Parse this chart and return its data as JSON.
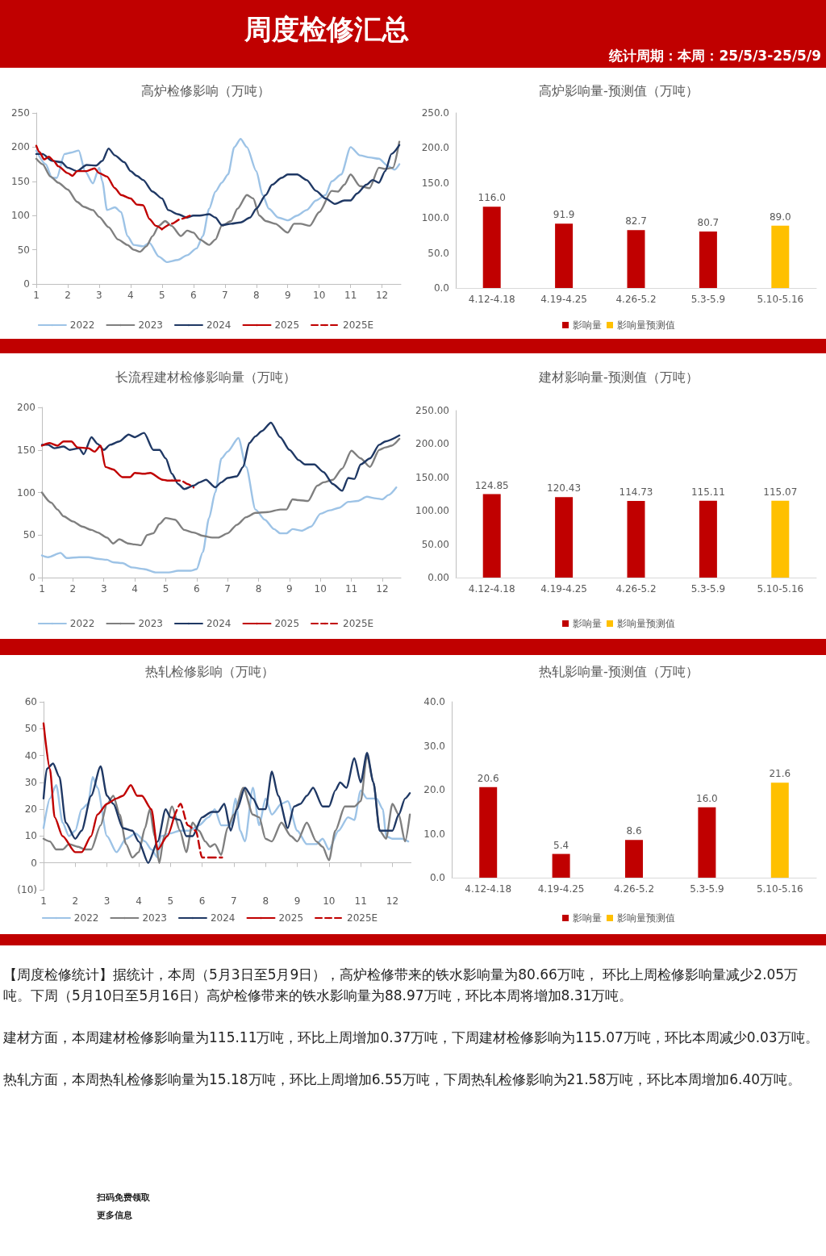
{
  "chart_data": [
    {
      "type": "other",
      "title": "周度检修汇总",
      "subtitle": "统计周期：本周：25/5/3-25/5/9"
    },
    {
      "type": "line",
      "title": "高炉检修影响（万吨）",
      "xlim": [
        1,
        12.6
      ],
      "xticks": [
        1,
        2,
        3,
        4,
        5,
        6,
        7,
        8,
        9,
        10,
        11,
        12
      ],
      "ylim": [
        0,
        250
      ],
      "yticks": [
        0,
        50,
        100,
        150,
        200,
        250
      ],
      "legend": "bottom",
      "series": [
        {
          "name": "2022",
          "color": "#9dc3e6",
          "x": [
            1,
            1.3,
            1.5,
            1.65,
            1.9,
            2.1,
            2.35,
            2.55,
            2.8,
            3.0,
            3.1,
            3.25,
            3.5,
            3.7,
            3.9,
            4.1,
            4.4,
            4.6,
            4.9,
            5.15,
            5.5,
            5.8,
            6.1,
            6.3,
            6.5,
            6.7,
            6.9,
            7.1,
            7.3,
            7.5,
            7.7,
            8.0,
            8.2,
            8.4,
            8.7,
            9.0,
            9.3,
            9.6,
            9.9,
            10.2,
            10.4,
            10.7,
            11.0,
            11.3,
            11.6,
            11.9,
            12.2,
            12.4,
            12.55
          ],
          "values": [
            195,
            175,
            155,
            155,
            190,
            192,
            195,
            165,
            147,
            170,
            150,
            108,
            112,
            105,
            70,
            57,
            55,
            60,
            40,
            32,
            35,
            42,
            52,
            70,
            110,
            135,
            148,
            160,
            200,
            212,
            200,
            165,
            130,
            110,
            97,
            93,
            100,
            108,
            122,
            130,
            150,
            160,
            200,
            188,
            185,
            183,
            172,
            167,
            175
          ]
        },
        {
          "name": "2023",
          "color": "#7f7f7f",
          "x": [
            1,
            1.2,
            1.45,
            1.7,
            2.0,
            2.3,
            2.5,
            2.8,
            3.0,
            3.3,
            3.6,
            3.9,
            4.1,
            4.3,
            4.5,
            4.7,
            4.9,
            5.1,
            5.3,
            5.6,
            5.8,
            6.0,
            6.2,
            6.5,
            6.7,
            6.9,
            7.2,
            7.4,
            7.7,
            7.9,
            8.1,
            8.3,
            8.6,
            9.0,
            9.2,
            9.4,
            9.7,
            10.0,
            10.4,
            10.6,
            10.8,
            11.0,
            11.3,
            11.6,
            11.9,
            12.1,
            12.35,
            12.55
          ],
          "values": [
            183,
            175,
            157,
            148,
            138,
            120,
            113,
            108,
            98,
            83,
            65,
            57,
            50,
            47,
            55,
            70,
            85,
            92,
            85,
            70,
            78,
            75,
            65,
            57,
            65,
            85,
            92,
            110,
            130,
            125,
            100,
            92,
            88,
            75,
            88,
            88,
            85,
            105,
            136,
            135,
            145,
            160,
            143,
            140,
            170,
            168,
            170,
            208
          ]
        },
        {
          "name": "2024",
          "color": "#1f3864",
          "x": [
            1,
            1.2,
            1.5,
            1.8,
            2.0,
            2.3,
            2.6,
            2.9,
            3.1,
            3.3,
            3.5,
            3.8,
            4.0,
            4.2,
            4.4,
            4.7,
            5.0,
            5.2,
            5.5,
            5.8,
            6.0,
            6.2,
            6.5,
            6.7,
            6.9,
            7.2,
            7.5,
            7.8,
            8.0,
            8.3,
            8.5,
            8.8,
            9.0,
            9.3,
            9.6,
            9.9,
            10.2,
            10.5,
            10.8,
            11.0,
            11.2,
            11.5,
            11.7,
            11.9,
            12.1,
            12.3,
            12.55
          ],
          "values": [
            190,
            190,
            180,
            178,
            170,
            165,
            174,
            173,
            180,
            198,
            188,
            178,
            165,
            158,
            152,
            135,
            125,
            108,
            102,
            97,
            100,
            100,
            102,
            97,
            86,
            88,
            90,
            97,
            110,
            130,
            145,
            155,
            160,
            160,
            152,
            136,
            125,
            117,
            122,
            122,
            132,
            145,
            152,
            148,
            165,
            190,
            203
          ]
        },
        {
          "name": "2025",
          "color": "#c00000",
          "x": [
            1,
            1.1,
            1.25,
            1.4,
            1.55,
            1.7,
            2.0,
            2.15,
            2.3,
            2.6,
            2.85,
            3.0,
            3.25,
            3.5,
            3.7,
            4.0,
            4.2,
            4.4,
            4.6,
            4.8,
            5.0
          ],
          "values": [
            202,
            193,
            182,
            186,
            180,
            172,
            162,
            158,
            165,
            165,
            169,
            162,
            157,
            140,
            130,
            125,
            116,
            115,
            95,
            85,
            80
          ]
        },
        {
          "name": "2025E",
          "color": "#c00000",
          "line_style": "dashed",
          "x": [
            5.0,
            5.3,
            5.6,
            5.9
          ],
          "values": [
            80,
            88,
            95,
            100
          ]
        }
      ]
    },
    {
      "type": "bar",
      "title": "高炉影响量-预测值（万吨）",
      "categories": [
        "4.12-4.18",
        "4.19-4.25",
        "4.26-5.2",
        "5.3-5.9",
        "5.10-5.16"
      ],
      "ylim": [
        0,
        250
      ],
      "yticks": [
        {
          "value": 0,
          "label": "0.0"
        },
        {
          "value": 50,
          "label": "50.0"
        },
        {
          "value": 100,
          "label": "100.0"
        },
        {
          "value": 150,
          "label": "150.0"
        },
        {
          "value": 200,
          "label": "200.0"
        },
        {
          "value": 250,
          "label": "250.0"
        }
      ],
      "legend": "bottom",
      "series": [
        {
          "name": "影响量",
          "color": "#c00000",
          "values": [
            116.0,
            91.9,
            82.7,
            80.7,
            null
          ],
          "value_labels": [
            "116.0",
            "91.9",
            "82.7",
            "80.7",
            null
          ]
        },
        {
          "name": "影响量预测值",
          "color": "#ffc000",
          "values": [
            null,
            null,
            null,
            null,
            89.0
          ],
          "value_labels": [
            null,
            null,
            null,
            null,
            "89.0"
          ]
        }
      ]
    },
    {
      "type": "line",
      "title": "长流程建材检修影响量（万吨）",
      "xlim": [
        1,
        12.6
      ],
      "xticks": [
        1,
        2,
        3,
        4,
        5,
        6,
        7,
        8,
        9,
        10,
        11,
        12
      ],
      "ylim": [
        0,
        200
      ],
      "yticks": [
        0,
        50,
        100,
        150,
        200
      ],
      "legend": "bottom",
      "series": [
        {
          "name": "2022",
          "color": "#9dc3e6",
          "x": [
            1,
            1.2,
            1.6,
            1.8,
            2.2,
            2.5,
            2.8,
            3.1,
            3.3,
            3.6,
            3.9,
            4.3,
            4.7,
            5.1,
            5.4,
            5.8,
            6.0,
            6.2,
            6.4,
            6.6,
            6.8,
            7.0,
            7.35,
            7.6,
            7.9,
            8.2,
            8.5,
            8.7,
            8.9,
            9.1,
            9.4,
            9.7,
            10.0,
            10.3,
            10.6,
            10.9,
            11.2,
            11.5,
            11.8,
            12.0,
            12.2,
            12.45
          ],
          "values": [
            26,
            24,
            29,
            23,
            24,
            24,
            22,
            21,
            18,
            17,
            12,
            10,
            6,
            6,
            8,
            8,
            10,
            30,
            70,
            100,
            140,
            148,
            164,
            130,
            80,
            68,
            57,
            52,
            52,
            57,
            55,
            60,
            75,
            79,
            82,
            89,
            90,
            95,
            93,
            92,
            97,
            106
          ]
        },
        {
          "name": "2023",
          "color": "#7f7f7f",
          "x": [
            1,
            1.3,
            1.5,
            1.7,
            2.0,
            2.3,
            2.6,
            2.8,
            3.1,
            3.3,
            3.5,
            3.8,
            4.0,
            4.2,
            4.4,
            4.6,
            4.8,
            5.0,
            5.3,
            5.6,
            5.9,
            6.2,
            6.5,
            6.7,
            7.0,
            7.3,
            7.6,
            7.9,
            8.3,
            8.7,
            8.9,
            9.1,
            9.3,
            9.6,
            9.9,
            10.1,
            10.4,
            10.7,
            11.0,
            11.3,
            11.6,
            11.9,
            12.1,
            12.3,
            12.55
          ],
          "values": [
            100,
            88,
            80,
            72,
            66,
            60,
            56,
            53,
            47,
            40,
            45,
            40,
            39,
            38,
            50,
            52,
            63,
            70,
            68,
            56,
            53,
            49,
            47,
            47,
            52,
            62,
            71,
            76,
            77,
            80,
            80,
            92,
            91,
            90,
            108,
            112,
            115,
            128,
            149,
            140,
            130,
            150,
            153,
            155,
            163
          ]
        },
        {
          "name": "2024",
          "color": "#1f3864",
          "x": [
            1,
            1.2,
            1.4,
            1.7,
            1.9,
            2.2,
            2.35,
            2.6,
            2.8,
            3.0,
            3.2,
            3.5,
            3.8,
            4.0,
            4.3,
            4.6,
            4.8,
            5.0,
            5.2,
            5.4,
            5.6,
            5.9,
            6.1,
            6.3,
            6.6,
            6.8,
            7.0,
            7.3,
            7.5,
            7.7,
            7.9,
            8.1,
            8.4,
            8.7,
            9.0,
            9.3,
            9.5,
            9.8,
            10.1,
            10.4,
            10.7,
            10.9,
            11.1,
            11.3,
            11.6,
            11.9,
            12.1,
            12.55
          ],
          "values": [
            156,
            156,
            152,
            154,
            150,
            152,
            145,
            165,
            157,
            150,
            156,
            160,
            168,
            165,
            170,
            150,
            150,
            140,
            122,
            110,
            104,
            108,
            112,
            115,
            106,
            112,
            117,
            119,
            130,
            158,
            166,
            172,
            182,
            165,
            150,
            138,
            133,
            133,
            124,
            110,
            102,
            117,
            116,
            133,
            140,
            156,
            160,
            167
          ]
        },
        {
          "name": "2025",
          "color": "#c00000",
          "x": [
            1,
            1.25,
            1.5,
            1.7,
            1.95,
            2.15,
            2.5,
            2.7,
            2.9,
            3.05,
            3.3,
            3.6,
            3.85,
            4.0,
            4.3,
            4.5,
            4.9,
            5.05,
            5.2
          ],
          "values": [
            155,
            158,
            155,
            160,
            160,
            153,
            152,
            148,
            155,
            130,
            127,
            118,
            118,
            123,
            122,
            123,
            115,
            114,
            114
          ]
        },
        {
          "name": "2025E",
          "color": "#c00000",
          "line_style": "dashed",
          "x": [
            5.2,
            5.5,
            5.7,
            5.9
          ],
          "values": [
            114,
            114,
            110,
            106
          ]
        }
      ]
    },
    {
      "type": "bar",
      "title": "建材影响量-预测值（万吨）",
      "categories": [
        "4.12-4.18",
        "4.19-4.25",
        "4.26-5.2",
        "5.3-5.9",
        "5.10-5.16"
      ],
      "ylim": [
        0,
        250
      ],
      "yticks": [
        {
          "value": 0,
          "label": "0.00"
        },
        {
          "value": 50,
          "label": "50.00"
        },
        {
          "value": 100,
          "label": "100.00"
        },
        {
          "value": 150,
          "label": "150.00"
        },
        {
          "value": 200,
          "label": "200.00"
        },
        {
          "value": 250,
          "label": "250.00"
        }
      ],
      "legend": "bottom",
      "series": [
        {
          "name": "影响量",
          "color": "#c00000",
          "values": [
            124.85,
            120.43,
            114.73,
            115.11,
            null
          ],
          "value_labels": [
            "124.85",
            "120.43",
            "114.73",
            "115.11",
            null
          ]
        },
        {
          "name": "影响量预测值",
          "color": "#ffc000",
          "values": [
            null,
            null,
            null,
            null,
            115.07
          ],
          "value_labels": [
            null,
            null,
            null,
            null,
            "115.07"
          ]
        }
      ]
    },
    {
      "type": "line",
      "title": "热轧检修影响（万吨）",
      "xlim": [
        1,
        12.7
      ],
      "xticks": [
        1,
        2,
        3,
        4,
        5,
        6,
        7,
        8,
        9,
        10,
        11,
        12
      ],
      "ylim": [
        -10,
        60
      ],
      "yticks": [
        {
          "value": -10,
          "label": "(10)"
        },
        0,
        10,
        20,
        30,
        40,
        50,
        60
      ],
      "legend": "bottom",
      "series": [
        {
          "name": "2022",
          "color": "#9dc3e6",
          "x": [
            1,
            1.2,
            1.4,
            1.6,
            1.8,
            2.0,
            2.2,
            2.4,
            2.55,
            2.7,
            3.0,
            3.3,
            3.6,
            3.9,
            4.2,
            4.4,
            4.6,
            4.7,
            5.0,
            5.3,
            5.6,
            5.9,
            6.2,
            6.4,
            6.6,
            6.9,
            7.05,
            7.2,
            7.35,
            7.6,
            7.8,
            8.0,
            8.2,
            8.5,
            8.7,
            9.0,
            9.3,
            9.6,
            9.8,
            10.0,
            10.3,
            10.6,
            10.8,
            11.0,
            11.2,
            11.5,
            11.7,
            11.8,
            12.0,
            12.3,
            12.5
          ],
          "values": [
            13,
            24,
            29,
            15,
            10,
            12,
            20,
            22,
            32,
            28,
            10,
            4,
            9,
            11,
            8,
            5,
            2,
            10,
            11,
            12,
            12,
            14,
            17,
            20,
            14,
            14,
            24,
            12,
            8,
            28,
            14,
            24,
            18,
            22,
            23,
            12,
            7,
            7,
            9,
            5,
            12,
            17,
            16,
            27,
            24,
            24,
            20,
            10,
            9,
            9,
            8
          ]
        },
        {
          "name": "2023",
          "color": "#7f7f7f",
          "x": [
            1,
            1.2,
            1.4,
            1.6,
            1.8,
            2.1,
            2.3,
            2.5,
            2.8,
            3.0,
            3.2,
            3.4,
            3.6,
            3.8,
            4.0,
            4.2,
            4.35,
            4.5,
            4.65,
            4.8,
            5.05,
            5.3,
            5.5,
            5.7,
            5.9,
            6.1,
            6.25,
            6.4,
            6.6,
            6.8,
            7.0,
            7.3,
            7.6,
            7.8,
            8.0,
            8.2,
            8.5,
            8.8,
            9.0,
            9.3,
            9.6,
            9.8,
            10.0,
            10.2,
            10.5,
            10.8,
            11.0,
            11.2,
            11.4,
            11.6,
            11.8,
            12.0,
            12.2,
            12.4,
            12.55
          ],
          "values": [
            9,
            8,
            5,
            5,
            7,
            6,
            5,
            5,
            14,
            22,
            25,
            18,
            7,
            2,
            4,
            13,
            20,
            10,
            0,
            10,
            21,
            12,
            4,
            15,
            12,
            8,
            6,
            7,
            3,
            13,
            18,
            28,
            18,
            17,
            9,
            8,
            15,
            10,
            8,
            15,
            8,
            6,
            1,
            12,
            21,
            21,
            23,
            40,
            30,
            12,
            9,
            22,
            18,
            8,
            18
          ]
        },
        {
          "name": "2024",
          "color": "#1f3864",
          "x": [
            1,
            1.1,
            1.3,
            1.5,
            1.7,
            2.0,
            2.2,
            2.5,
            2.8,
            3.0,
            3.2,
            3.5,
            3.8,
            4.0,
            4.3,
            4.6,
            4.85,
            5.0,
            5.3,
            5.5,
            5.7,
            6.0,
            6.3,
            6.5,
            6.7,
            6.9,
            7.1,
            7.35,
            7.6,
            7.8,
            8.0,
            8.2,
            8.4,
            8.7,
            8.9,
            9.1,
            9.3,
            9.5,
            9.8,
            10.0,
            10.2,
            10.35,
            10.55,
            10.8,
            11.0,
            11.2,
            11.4,
            11.6,
            11.8,
            12.0,
            12.2,
            12.4,
            12.55
          ],
          "values": [
            24,
            35,
            37,
            32,
            15,
            9,
            12,
            25,
            36,
            25,
            22,
            13,
            12,
            8,
            0,
            8,
            20,
            17,
            16,
            10,
            10,
            17,
            19,
            19,
            22,
            12,
            20,
            28,
            24,
            20,
            20,
            34,
            25,
            13,
            21,
            22,
            25,
            28,
            21,
            21,
            27,
            30,
            28,
            39,
            30,
            41,
            30,
            12,
            12,
            12,
            18,
            24,
            26
          ]
        },
        {
          "name": "2025",
          "color": "#c00000",
          "x": [
            1,
            1.2,
            1.35,
            1.6,
            2.0,
            2.2,
            2.5,
            2.7,
            3.0,
            3.3,
            3.5,
            3.75,
            3.95,
            4.1,
            4.4,
            4.6,
            4.9,
            5.11
          ],
          "values": [
            52,
            35,
            17,
            10,
            4,
            4,
            10,
            18,
            22,
            24,
            25,
            29,
            25,
            25,
            20,
            5,
            10,
            17
          ]
        },
        {
          "name": "2025E",
          "color": "#c00000",
          "line_style": "dashed",
          "x": [
            5.11,
            5.32,
            5.55,
            5.8,
            6.0,
            6.63
          ],
          "values": [
            17,
            22,
            14,
            12,
            2,
            2
          ]
        }
      ]
    },
    {
      "type": "bar",
      "title": "热轧影响量-预测值（万吨）",
      "categories": [
        "4.12-4.18",
        "4.19-4.25",
        "4.26-5.2",
        "5.3-5.9",
        "5.10-5.16"
      ],
      "ylim": [
        0,
        40
      ],
      "yticks": [
        {
          "value": 0,
          "label": "0.0"
        },
        {
          "value": 10,
          "label": "10.0"
        },
        {
          "value": 20,
          "label": "20.0"
        },
        {
          "value": 30,
          "label": "30.0"
        },
        {
          "value": 40,
          "label": "40.0"
        }
      ],
      "legend": "bottom",
      "series": [
        {
          "name": "影响量",
          "color": "#c00000",
          "values": [
            20.6,
            5.4,
            8.6,
            16.0,
            null
          ],
          "value_labels": [
            "20.6",
            "5.4",
            "8.6",
            "16.0",
            null
          ]
        },
        {
          "name": "影响量预测值",
          "color": "#ffc000",
          "values": [
            null,
            null,
            null,
            null,
            21.6
          ],
          "value_labels": [
            null,
            null,
            null,
            null,
            "21.6"
          ]
        }
      ]
    },
    {
      "type": "other",
      "annotations": [
        "【周度检修统计】据统计，本周（5月3日至5月9日），高炉检修带来的铁水影响量为80.66万吨， 环比上周检修影响量减少2.05万吨。下周（5月10日至5月16日）高炉检修带来的铁水影响量为88.97万吨，环比本周将增加8.31万吨。",
        "建材方面，本周建材检修影响量为115.11万吨，环比上周增加0.37万吨，下周建材检修影响为115.07万吨，环比本周减少0.03万吨。",
        "热轧方面，本周热轧检修影响量为15.18万吨，环比上周增加6.55万吨，下周热轧检修影响为21.58万吨，环比本周增加6.40万吨。",
        "扫码免费领取",
        "更多信息"
      ]
    }
  ]
}
